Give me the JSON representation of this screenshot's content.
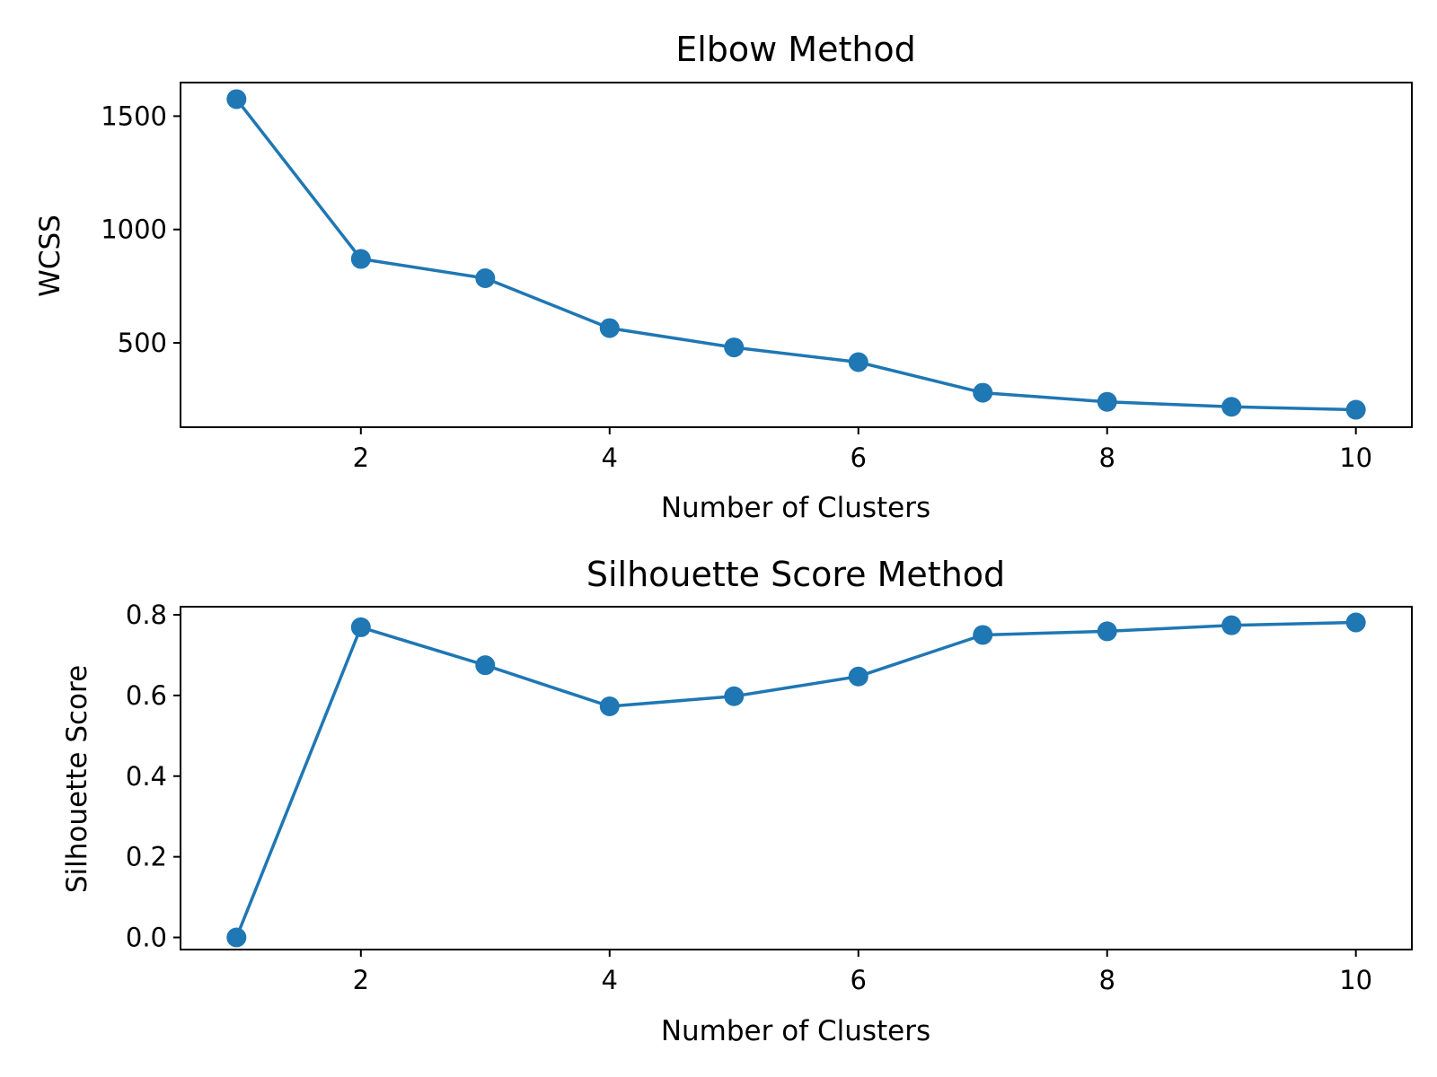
{
  "series_color": "#1f77b4",
  "chart_data": [
    {
      "type": "line",
      "title": "Elbow Method",
      "xlabel": "Number of Clusters",
      "ylabel": "WCSS",
      "x": [
        1,
        2,
        3,
        4,
        5,
        6,
        7,
        8,
        9,
        10
      ],
      "y": [
        1575,
        870,
        785,
        565,
        480,
        415,
        280,
        240,
        218,
        205
      ],
      "xlim": [
        0.55,
        10.45
      ],
      "ylim": [
        128,
        1648
      ],
      "xticks": [
        2,
        4,
        6,
        8,
        10
      ],
      "yticks": [
        500,
        1000,
        1500
      ],
      "marker": "circle",
      "grid": false,
      "legend": "none"
    },
    {
      "type": "line",
      "title": "Silhouette Score Method",
      "xlabel": "Number of Clusters",
      "ylabel": "Silhouette Score",
      "x": [
        1,
        2,
        3,
        4,
        5,
        6,
        7,
        8,
        9,
        10
      ],
      "y": [
        0.0,
        0.769,
        0.675,
        0.573,
        0.598,
        0.647,
        0.75,
        0.759,
        0.774,
        0.781
      ],
      "xlim": [
        0.55,
        10.45
      ],
      "ylim": [
        -0.03,
        0.82
      ],
      "xticks": [
        2,
        4,
        6,
        8,
        10
      ],
      "yticks": [
        0.0,
        0.2,
        0.4,
        0.6,
        0.8
      ],
      "ytick_format": "1dp",
      "marker": "circle",
      "grid": false,
      "legend": "none"
    }
  ]
}
